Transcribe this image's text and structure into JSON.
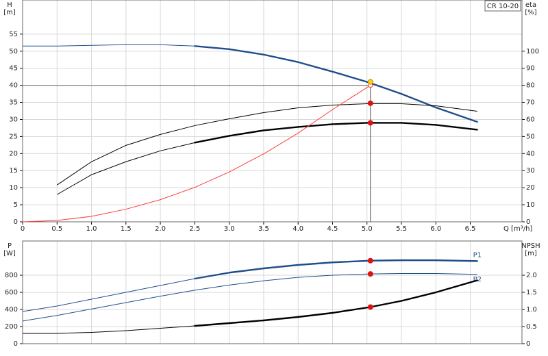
{
  "chart_data": [
    {
      "type": "line",
      "title": "CR 10-20",
      "ylabel": "H",
      "yunit": "[m]",
      "y2label": "eta",
      "y2unit": "[%]",
      "xlabel": "Q [m³/h]",
      "xlim": [
        0,
        7.25
      ],
      "ylim": [
        0,
        65
      ],
      "y2lim": [
        0,
        130
      ],
      "grid": true,
      "xticks": [
        0,
        0.5,
        {
          "value": 1,
          "label": "1.0"
        },
        1.5,
        {
          "value": 2,
          "label": "2.0"
        },
        2.5,
        {
          "value": 3,
          "label": "3.0"
        },
        3.5,
        {
          "value": 4,
          "label": "4.0"
        },
        4.5,
        {
          "value": 5,
          "label": "5.0"
        },
        5.5,
        {
          "value": 6,
          "label": "6.0"
        },
        6.5
      ],
      "yticks": [
        0,
        5,
        10,
        15,
        20,
        25,
        30,
        35,
        40,
        45,
        50,
        55
      ],
      "y2ticks": [
        0,
        10,
        20,
        30,
        40,
        50,
        60,
        70,
        80,
        90,
        100
      ],
      "series": [
        {
          "color": "#1f4e8c",
          "axis": "y",
          "thick_from": 2.5,
          "x": [
            0,
            0.5,
            1,
            1.5,
            2,
            2.5,
            3,
            3.5,
            4,
            4.5,
            5,
            5.5,
            6,
            6.6
          ],
          "values": [
            51.5,
            51.5,
            51.7,
            51.9,
            51.9,
            51.5,
            50.6,
            49,
            46.8,
            44,
            41,
            37.5,
            33.5,
            29.3
          ]
        },
        {
          "color": "#000000",
          "axis": "y2",
          "x": [
            0.5,
            1,
            1.5,
            2,
            2.5,
            3,
            3.5,
            4,
            4.5,
            5,
            5.5,
            6,
            6.6
          ],
          "values": [
            21.6,
            35.2,
            44.8,
            51.2,
            56.4,
            60.4,
            64,
            66.8,
            68.4,
            69.2,
            69.2,
            68,
            64.8
          ]
        },
        {
          "color": "#000000",
          "axis": "y2",
          "thick_from": 2.5,
          "x": [
            0.5,
            1,
            1.5,
            2,
            2.5,
            3,
            3.5,
            4,
            4.5,
            5,
            5.5,
            6,
            6.6
          ],
          "values": [
            16,
            27.6,
            35.2,
            41.6,
            46.4,
            50.4,
            53.6,
            55.6,
            57.2,
            58,
            58,
            56.8,
            54
          ]
        },
        {
          "color": "#ff3b3b",
          "axis": "y",
          "x": [
            0,
            0.5,
            1,
            1.5,
            2,
            2.5,
            3,
            3.5,
            4,
            4.5,
            5.05
          ],
          "values": [
            0,
            0.4,
            1.6,
            3.7,
            6.5,
            10.1,
            14.6,
            19.9,
            26,
            32.9,
            40
          ]
        }
      ],
      "points": [
        {
          "x": 5.05,
          "y": 41,
          "color": "#ffd700",
          "axis": "y"
        },
        {
          "x": 5.05,
          "y": 69.5,
          "color": "#e01010",
          "axis": "y2"
        },
        {
          "x": 5.05,
          "y": 58,
          "color": "#e01010",
          "axis": "y2"
        }
      ]
    },
    {
      "type": "line",
      "ylabel": "P",
      "yunit": "[W]",
      "y2label": "NPSH",
      "y2unit": "[m]",
      "xlim": [
        0,
        7.25
      ],
      "ylim": [
        0,
        1200
      ],
      "y2lim": [
        0,
        3
      ],
      "grid": true,
      "yticks": [
        0,
        200,
        400,
        600,
        800
      ],
      "y2ticks": [
        0,
        0.5,
        {
          "value": 1,
          "label": "1.0"
        },
        1.5,
        {
          "value": 2,
          "label": "2.0"
        }
      ],
      "series": [
        {
          "name": "P1",
          "color": "#1f4e8c",
          "axis": "y",
          "thick_from": 2.5,
          "x": [
            0,
            0.5,
            1,
            1.5,
            2,
            2.5,
            3,
            3.5,
            4,
            4.5,
            5.05,
            5.5,
            6,
            6.6
          ],
          "values": [
            376,
            440,
            520,
            600,
            680,
            760,
            830,
            880,
            920,
            950,
            970,
            975,
            975,
            965
          ]
        },
        {
          "name": "P2",
          "color": "#1f4e8c",
          "axis": "y",
          "x": [
            0,
            0.5,
            1,
            1.5,
            2,
            2.5,
            3,
            3.5,
            4,
            4.5,
            5.05,
            5.5,
            6,
            6.6
          ],
          "values": [
            265,
            330,
            405,
            480,
            555,
            625,
            685,
            735,
            775,
            800,
            815,
            820,
            820,
            810
          ]
        },
        {
          "color": "#000000",
          "axis": "y2",
          "thick_from": 2.5,
          "x": [
            0,
            0.5,
            1,
            1.5,
            2,
            2.5,
            3,
            3.5,
            4,
            4.5,
            5.05,
            5.5,
            6,
            6.6
          ],
          "values": [
            0.3,
            0.3,
            0.33,
            0.38,
            0.45,
            0.52,
            0.6,
            0.68,
            0.78,
            0.9,
            1.07,
            1.25,
            1.5,
            1.85
          ]
        }
      ],
      "points": [
        {
          "x": 5.05,
          "y": 970,
          "color": "#e01010",
          "axis": "y"
        },
        {
          "x": 5.05,
          "y": 815,
          "color": "#e01010",
          "axis": "y"
        },
        {
          "x": 5.05,
          "y": 1.07,
          "color": "#e01010",
          "axis": "y2"
        }
      ]
    }
  ]
}
